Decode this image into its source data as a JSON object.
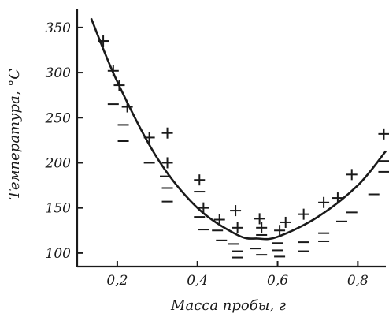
{
  "chart_data": {
    "type": "scatter",
    "title": "",
    "xlabel": "Масса пробы, г",
    "ylabel": "Температура, °С",
    "xlim": [
      0.1,
      0.87
    ],
    "ylim": [
      85,
      370
    ],
    "x_ticks": [
      0.2,
      0.4,
      0.6,
      0.8
    ],
    "x_tick_labels": [
      "0,2",
      "0,4",
      "0,6",
      "0,8"
    ],
    "y_ticks": [
      100,
      150,
      200,
      250,
      300,
      350
    ],
    "y_tick_labels": [
      "100",
      "150",
      "200",
      "250",
      "300",
      "350"
    ],
    "grid": false,
    "legend": "none",
    "series": [
      {
        "marker": "plus",
        "points": [
          [
            0.165,
            335
          ],
          [
            0.19,
            302
          ],
          [
            0.205,
            286
          ],
          [
            0.225,
            262
          ],
          [
            0.28,
            228
          ],
          [
            0.325,
            233
          ],
          [
            0.325,
            200
          ],
          [
            0.405,
            181
          ],
          [
            0.415,
            150
          ],
          [
            0.455,
            137
          ],
          [
            0.495,
            147
          ],
          [
            0.5,
            128
          ],
          [
            0.555,
            138
          ],
          [
            0.56,
            128
          ],
          [
            0.605,
            125
          ],
          [
            0.62,
            134
          ],
          [
            0.665,
            143
          ],
          [
            0.715,
            156
          ],
          [
            0.75,
            161
          ],
          [
            0.785,
            187
          ],
          [
            0.865,
            232
          ]
        ]
      },
      {
        "marker": "minus",
        "points": [
          [
            0.19,
            265
          ],
          [
            0.215,
            242
          ],
          [
            0.215,
            224
          ],
          [
            0.28,
            200
          ],
          [
            0.32,
            185
          ],
          [
            0.325,
            172
          ],
          [
            0.325,
            157
          ],
          [
            0.405,
            168
          ],
          [
            0.405,
            140
          ],
          [
            0.415,
            126
          ],
          [
            0.45,
            125
          ],
          [
            0.46,
            114
          ],
          [
            0.49,
            110
          ],
          [
            0.5,
            102
          ],
          [
            0.5,
            95
          ],
          [
            0.545,
            105
          ],
          [
            0.56,
            120
          ],
          [
            0.56,
            98
          ],
          [
            0.6,
            111
          ],
          [
            0.6,
            103
          ],
          [
            0.605,
            96
          ],
          [
            0.665,
            112
          ],
          [
            0.665,
            102
          ],
          [
            0.715,
            122
          ],
          [
            0.715,
            113
          ],
          [
            0.76,
            135
          ],
          [
            0.785,
            145
          ],
          [
            0.84,
            165
          ],
          [
            0.865,
            190
          ],
          [
            0.865,
            202
          ]
        ]
      }
    ],
    "fit_curve": {
      "type": "line",
      "x": [
        0.135,
        0.2,
        0.3,
        0.4,
        0.5,
        0.55,
        0.6,
        0.7,
        0.8,
        0.87
      ],
      "y": [
        360,
        290,
        205,
        150,
        120,
        116,
        118,
        140,
        175,
        213
      ]
    }
  }
}
